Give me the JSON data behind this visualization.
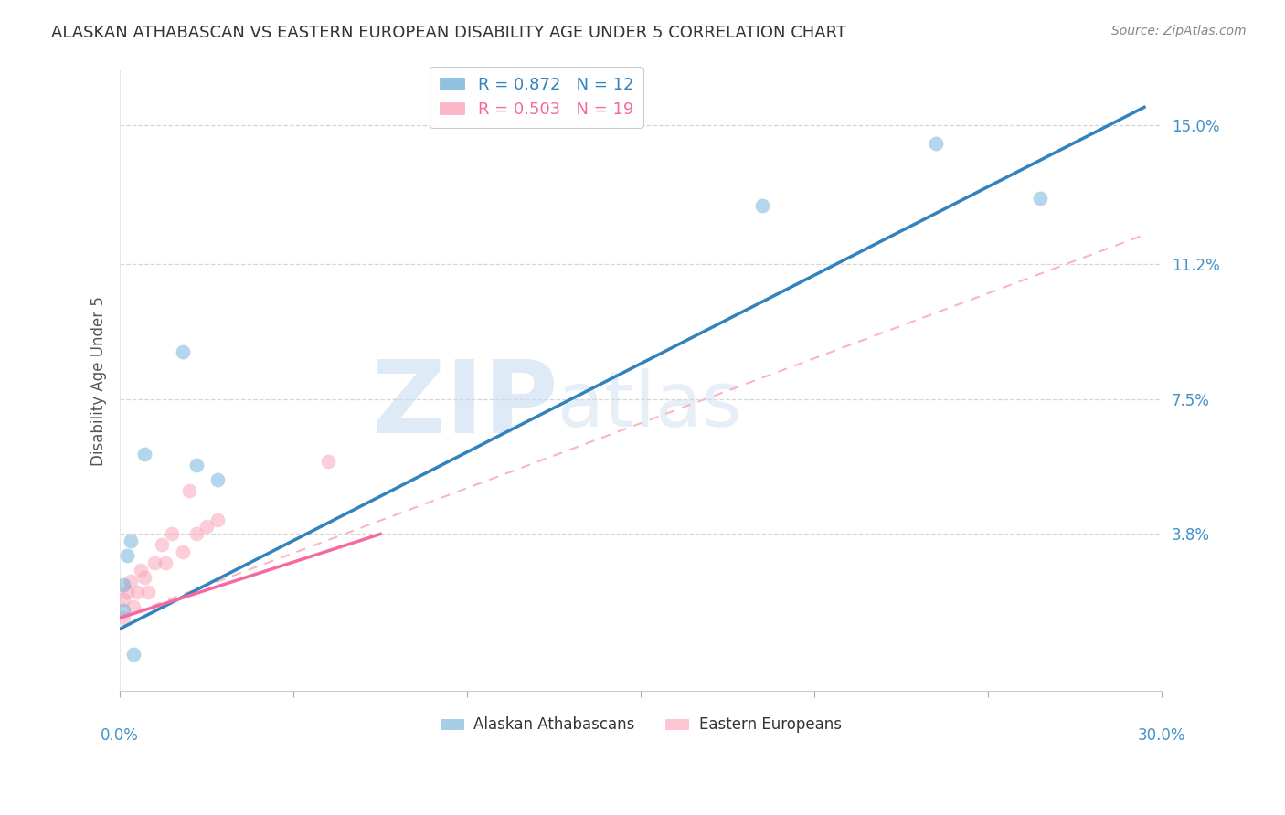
{
  "title": "ALASKAN ATHABASCAN VS EASTERN EUROPEAN DISABILITY AGE UNDER 5 CORRELATION CHART",
  "source": "Source: ZipAtlas.com",
  "ylabel": "Disability Age Under 5",
  "ytick_labels": [
    "15.0%",
    "11.2%",
    "7.5%",
    "3.8%"
  ],
  "ytick_values": [
    0.15,
    0.112,
    0.075,
    0.038
  ],
  "xlim": [
    0.0,
    0.3
  ],
  "ylim": [
    -0.005,
    0.165
  ],
  "legend_blue_r": "R = 0.872",
  "legend_blue_n": "N = 12",
  "legend_pink_r": "R = 0.503",
  "legend_pink_n": "N = 19",
  "legend_label_blue": "Alaskan Athabascans",
  "legend_label_pink": "Eastern Europeans",
  "watermark_zip": "ZIP",
  "watermark_atlas": "atlas",
  "blue_scatter_x": [
    0.001,
    0.003,
    0.018,
    0.007,
    0.002,
    0.001,
    0.022,
    0.028,
    0.004,
    0.185,
    0.235,
    0.265
  ],
  "blue_scatter_y": [
    0.024,
    0.036,
    0.088,
    0.06,
    0.032,
    0.017,
    0.057,
    0.053,
    0.005,
    0.128,
    0.145,
    0.13
  ],
  "pink_scatter_x": [
    0.001,
    0.001,
    0.002,
    0.003,
    0.004,
    0.005,
    0.006,
    0.007,
    0.008,
    0.01,
    0.012,
    0.013,
    0.015,
    0.018,
    0.02,
    0.022,
    0.025,
    0.028,
    0.06
  ],
  "pink_scatter_y": [
    0.015,
    0.02,
    0.022,
    0.025,
    0.018,
    0.022,
    0.028,
    0.026,
    0.022,
    0.03,
    0.035,
    0.03,
    0.038,
    0.033,
    0.05,
    0.038,
    0.04,
    0.042,
    0.058
  ],
  "blue_line_x": [
    0.0,
    0.295
  ],
  "blue_line_y": [
    0.012,
    0.155
  ],
  "pink_solid_line_x": [
    0.0,
    0.075
  ],
  "pink_solid_line_y": [
    0.015,
    0.038
  ],
  "pink_dash_line_x": [
    0.0,
    0.295
  ],
  "pink_dash_line_y": [
    0.015,
    0.12
  ],
  "background_color": "#ffffff",
  "scatter_alpha": 0.5,
  "scatter_size": 130,
  "blue_color": "#6baed6",
  "pink_color": "#fa9fb5",
  "blue_line_color": "#3182bd",
  "pink_solid_line_color": "#f768a1",
  "pink_dash_line_color": "#fbb4c3",
  "grid_color": "#cccccc",
  "title_color": "#333333",
  "axis_label_color": "#4292c6"
}
